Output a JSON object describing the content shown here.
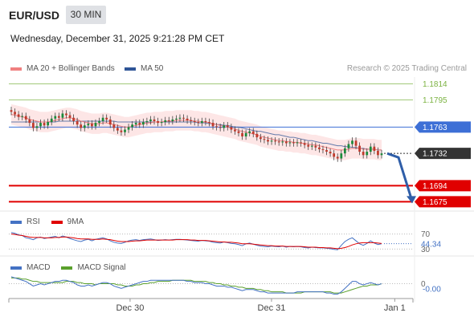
{
  "header": {
    "symbol": "EUR/USD",
    "timeframe": "30 MIN",
    "datetime": "Wednesday, December 31, 2025 9:21:28 PM CET"
  },
  "legend": {
    "items": [
      {
        "label": "MA 20 + Bollinger Bands",
        "color": "#f08080"
      },
      {
        "label": "MA 50",
        "color": "#2f5597"
      }
    ],
    "credit": "Research © 2025 Trading Central"
  },
  "price_levels": [
    {
      "label": "1.1814",
      "value": 1.1814,
      "color": "#7cb342",
      "style": "text"
    },
    {
      "label": "1.1795",
      "value": 1.1795,
      "color": "#7cb342",
      "style": "text"
    },
    {
      "label": "1.1763",
      "value": 1.1763,
      "color": "#3d6fd6",
      "style": "tag"
    },
    {
      "label": "1.1732",
      "value": 1.1732,
      "color": "#333333",
      "style": "tag"
    },
    {
      "label": "1.1694",
      "value": 1.1694,
      "color": "#e00000",
      "style": "tag"
    },
    {
      "label": "1.1675",
      "value": 1.1675,
      "color": "#e00000",
      "style": "tag"
    }
  ],
  "rsi": {
    "legend": [
      {
        "label": "RSI",
        "color": "#4472c4"
      },
      {
        "label": "9MA",
        "color": "#e00000"
      }
    ],
    "levels": [
      "70",
      "30"
    ],
    "value_label": "44.34"
  },
  "macd": {
    "legend": [
      {
        "label": "MACD",
        "color": "#4472c4"
      },
      {
        "label": "MACD Signal",
        "color": "#5aa02c"
      }
    ],
    "level": "0",
    "value_label": "-0.00"
  },
  "x_axis": {
    "ticks": [
      {
        "label": "Dec 30",
        "pos": 0.3
      },
      {
        "label": "Dec 31",
        "pos": 0.65
      },
      {
        "label": "Jan 1",
        "pos": 0.955
      }
    ]
  },
  "chart_data": {
    "type": "line",
    "title": "EUR/USD 30 MIN",
    "y_range": [
      1.1665,
      1.1822
    ],
    "close": [
      1.1781,
      1.1778,
      1.1775,
      1.1776,
      1.1772,
      1.1768,
      1.1762,
      1.1764,
      1.1768,
      1.1765,
      1.1769,
      1.1773,
      1.1776,
      1.1774,
      1.1779,
      1.1777,
      1.1774,
      1.177,
      1.1766,
      1.1762,
      1.1765,
      1.1767,
      1.1764,
      1.1768,
      1.177,
      1.1774,
      1.1772,
      1.1766,
      1.1762,
      1.1759,
      1.1757,
      1.176,
      1.1763,
      1.1766,
      1.1768,
      1.1766,
      1.1769,
      1.177,
      1.1772,
      1.177,
      1.1768,
      1.1769,
      1.1771,
      1.177,
      1.1772,
      1.1773,
      1.1774,
      1.1773,
      1.1771,
      1.177,
      1.1769,
      1.1768,
      1.177,
      1.1769,
      1.1768,
      1.1764,
      1.1763,
      1.1762,
      1.1765,
      1.1763,
      1.176,
      1.1758,
      1.1756,
      1.1752,
      1.1756,
      1.1758,
      1.1755,
      1.1751,
      1.1749,
      1.1748,
      1.1746,
      1.1747,
      1.1746,
      1.1745,
      1.1746,
      1.1744,
      1.1745,
      1.1744,
      1.1745,
      1.1744,
      1.1742,
      1.174,
      1.1741,
      1.1739,
      1.1737,
      1.1736,
      1.1734,
      1.1732,
      1.1728,
      1.1726,
      1.1732,
      1.1738,
      1.1743,
      1.1747,
      1.1741,
      1.1734,
      1.173,
      1.1734,
      1.174,
      1.1735,
      1.173,
      1.1732
    ],
    "ma20": [
      1.1778,
      1.1777,
      1.1776,
      1.1775,
      1.1774,
      1.1772,
      1.1771,
      1.177,
      1.1769,
      1.1769,
      1.1769,
      1.177,
      1.1771,
      1.1772,
      1.1773,
      1.1774,
      1.1774,
      1.1773,
      1.1772,
      1.177,
      1.1769,
      1.1768,
      1.1767,
      1.1767,
      1.1767,
      1.1768,
      1.1768,
      1.1767,
      1.1766,
      1.1765,
      1.1764,
      1.1763,
      1.1763,
      1.1764,
      1.1765,
      1.1766,
      1.1767,
      1.1768,
      1.1768,
      1.1769,
      1.1769,
      1.1769,
      1.177,
      1.177,
      1.177,
      1.1771,
      1.1771,
      1.1771,
      1.1771,
      1.1771,
      1.177,
      1.177,
      1.1769,
      1.1769,
      1.1768,
      1.1767,
      1.1766,
      1.1765,
      1.1764,
      1.1763,
      1.1762,
      1.1761,
      1.1759,
      1.1758,
      1.1757,
      1.1756,
      1.1755,
      1.1754,
      1.1752,
      1.1751,
      1.175,
      1.1749,
      1.1748,
      1.1747,
      1.1747,
      1.1746,
      1.1746,
      1.1745,
      1.1745,
      1.1744,
      1.1744,
      1.1743,
      1.1742,
      1.1742,
      1.1741,
      1.174,
      1.1739,
      1.1738,
      1.1737,
      1.1736,
      1.1736,
      1.1736,
      1.1737,
      1.1738,
      1.1738,
      1.1738,
      1.1737,
      1.1737,
      1.1737,
      1.1737,
      1.1736,
      1.1736
    ],
    "ma50": [
      1.1769,
      1.1769,
      1.1769,
      1.1769,
      1.1769,
      1.1769,
      1.1769,
      1.1769,
      1.1769,
      1.1769,
      1.1769,
      1.1769,
      1.1769,
      1.177,
      1.177,
      1.177,
      1.177,
      1.177,
      1.177,
      1.177,
      1.177,
      1.177,
      1.177,
      1.177,
      1.177,
      1.177,
      1.177,
      1.177,
      1.177,
      1.1769,
      1.1769,
      1.1769,
      1.1769,
      1.1769,
      1.1769,
      1.1769,
      1.1769,
      1.1769,
      1.1769,
      1.1769,
      1.1769,
      1.1769,
      1.1769,
      1.1769,
      1.1769,
      1.1769,
      1.1769,
      1.1769,
      1.1769,
      1.1769,
      1.1769,
      1.1768,
      1.1768,
      1.1768,
      1.1767,
      1.1767,
      1.1766,
      1.1766,
      1.1765,
      1.1765,
      1.1764,
      1.1763,
      1.1763,
      1.1762,
      1.1761,
      1.176,
      1.1759,
      1.1758,
      1.1758,
      1.1757,
      1.1756,
      1.1755,
      1.1754,
      1.1754,
      1.1753,
      1.1752,
      1.1751,
      1.1751,
      1.175,
      1.1749,
      1.1748,
      1.1747,
      1.1747,
      1.1746,
      1.1745,
      1.1744,
      1.1744,
      1.1743,
      1.1742,
      1.1741,
      1.1741,
      1.174,
      1.174,
      1.1739,
      1.1739,
      1.1738,
      1.1738,
      1.1737,
      1.1737,
      1.1737,
      1.1736,
      1.1736
    ],
    "band_width": 0.0012,
    "forecast": [
      [
        1.1732,
        1.1731
      ],
      [
        1.1728,
        1.1675
      ]
    ],
    "rsi_series": [
      74,
      72,
      68,
      66,
      60,
      58,
      55,
      60,
      62,
      58,
      60,
      62,
      64,
      60,
      65,
      62,
      58,
      55,
      52,
      50,
      54,
      56,
      52,
      56,
      58,
      60,
      57,
      52,
      48,
      46,
      45,
      48,
      52,
      54,
      55,
      53,
      55,
      56,
      57,
      55,
      53,
      54,
      55,
      54,
      55,
      56,
      56,
      55,
      54,
      53,
      52,
      51,
      53,
      52,
      51,
      48,
      47,
      46,
      49,
      47,
      45,
      44,
      42,
      39,
      44,
      46,
      43,
      40,
      38,
      37,
      36,
      38,
      37,
      36,
      38,
      35,
      37,
      36,
      37,
      36,
      34,
      33,
      35,
      34,
      33,
      33,
      32,
      31,
      29,
      28,
      40,
      50,
      56,
      60,
      52,
      44,
      40,
      45,
      52,
      46,
      42,
      44
    ],
    "rsi_ma": [
      70,
      69,
      67,
      66,
      64,
      62,
      61,
      61,
      61,
      60,
      60,
      60,
      61,
      61,
      62,
      62,
      61,
      60,
      58,
      57,
      57,
      57,
      56,
      56,
      56,
      57,
      56,
      55,
      53,
      51,
      50,
      50,
      50,
      51,
      52,
      52,
      53,
      54,
      54,
      54,
      54,
      54,
      54,
      54,
      54,
      55,
      55,
      55,
      55,
      54,
      54,
      53,
      53,
      53,
      52,
      51,
      50,
      49,
      49,
      48,
      48,
      47,
      46,
      44,
      44,
      44,
      43,
      42,
      41,
      40,
      39,
      39,
      38,
      38,
      38,
      37,
      37,
      37,
      37,
      37,
      36,
      35,
      35,
      35,
      34,
      34,
      33,
      33,
      32,
      31,
      32,
      34,
      37,
      41,
      44,
      46,
      47,
      47,
      47,
      47,
      46,
      45
    ],
    "macd_series": [
      0.0006,
      0.0005,
      0.0004,
      0.0003,
      0.0002,
      0.0,
      -0.0002,
      -0.0001,
      0.0,
      -0.0001,
      0.0,
      0.0001,
      0.0002,
      0.0002,
      0.0003,
      0.0003,
      0.0002,
      0.0001,
      -0.0001,
      -0.0002,
      -0.0002,
      -0.0001,
      -0.0002,
      -0.0001,
      0.0,
      0.0001,
      0.0001,
      0.0,
      -0.0002,
      -0.0003,
      -0.0004,
      -0.0003,
      -0.0002,
      -0.0001,
      0.0,
      0.0001,
      0.0002,
      0.0002,
      0.0003,
      0.0003,
      0.0003,
      0.0003,
      0.0003,
      0.0003,
      0.0003,
      0.0003,
      0.0003,
      0.0003,
      0.0002,
      0.0002,
      0.0001,
      0.0001,
      0.0001,
      0.0,
      0.0,
      -0.0001,
      -0.0002,
      -0.0002,
      -0.0002,
      -0.0003,
      -0.0003,
      -0.0004,
      -0.0005,
      -0.0006,
      -0.0005,
      -0.0005,
      -0.0005,
      -0.0006,
      -0.0007,
      -0.0007,
      -0.0008,
      -0.0008,
      -0.0008,
      -0.0008,
      -0.0008,
      -0.0008,
      -0.0008,
      -0.0008,
      -0.0007,
      -0.0007,
      -0.0007,
      -0.0007,
      -0.0007,
      -0.0007,
      -0.0007,
      -0.0007,
      -0.0008,
      -0.0008,
      -0.0009,
      -0.0009,
      -0.0007,
      -0.0004,
      -0.0001,
      0.0002,
      0.0002,
      0.0,
      -0.0001,
      0.0,
      0.0001,
      0.0,
      -0.0001,
      0.0
    ],
    "macd_signal": [
      0.0005,
      0.0005,
      0.0005,
      0.0004,
      0.0004,
      0.0003,
      0.0002,
      0.0002,
      0.0001,
      0.0001,
      0.0001,
      0.0001,
      0.0001,
      0.0001,
      0.0001,
      0.0002,
      0.0002,
      0.0002,
      0.0001,
      0.0001,
      0.0,
      0.0,
      0.0,
      -0.0001,
      0.0,
      0.0,
      0.0,
      0.0,
      0.0,
      -0.0001,
      -0.0001,
      -0.0002,
      -0.0002,
      -0.0002,
      -0.0001,
      -0.0001,
      0.0,
      0.0,
      0.0001,
      0.0001,
      0.0002,
      0.0002,
      0.0002,
      0.0002,
      0.0003,
      0.0003,
      0.0003,
      0.0003,
      0.0003,
      0.0003,
      0.0002,
      0.0002,
      0.0002,
      0.0002,
      0.0001,
      0.0001,
      0.0,
      0.0,
      -0.0001,
      -0.0001,
      -0.0002,
      -0.0002,
      -0.0003,
      -0.0003,
      -0.0004,
      -0.0004,
      -0.0004,
      -0.0005,
      -0.0005,
      -0.0006,
      -0.0006,
      -0.0007,
      -0.0007,
      -0.0007,
      -0.0007,
      -0.0008,
      -0.0008,
      -0.0008,
      -0.0008,
      -0.0008,
      -0.0007,
      -0.0007,
      -0.0007,
      -0.0007,
      -0.0007,
      -0.0007,
      -0.0007,
      -0.0007,
      -0.0008,
      -0.0008,
      -0.0008,
      -0.0007,
      -0.0006,
      -0.0005,
      -0.0004,
      -0.0003,
      -0.0002,
      -0.0002,
      -0.0001,
      -0.0001,
      -0.0001,
      0.0
    ]
  }
}
